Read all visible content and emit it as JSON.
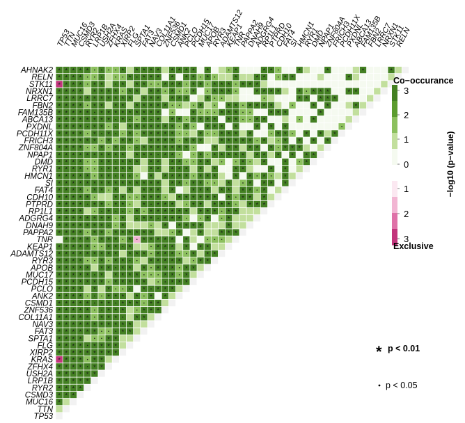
{
  "chart_data": {
    "type": "heatmap",
    "genes": [
      "TP53",
      "TTN",
      "MUC16",
      "CSMD3",
      "RYR2",
      "LRP1B",
      "USH2A",
      "ZFHX4",
      "KRAS",
      "XIRP2",
      "FLG",
      "SPTA1",
      "FAT3",
      "NAV3",
      "COL11A1",
      "ZNF536",
      "CSMD1",
      "ANK2",
      "PCLO",
      "PCDH15",
      "MUC17",
      "APOB",
      "RYR3",
      "ADAMTS12",
      "KEAP1",
      "TNR",
      "PAPPA2",
      "DNAH9",
      "ADGRG4",
      "RP1L1",
      "PTPRD",
      "CDH10",
      "FAT4",
      "SI",
      "HMCN1",
      "RYR1",
      "DMD",
      "NPAP1",
      "ZNF804A",
      "FRICH3",
      "PCDH11X",
      "PXDNL",
      "ABCA13",
      "FAM135B",
      "FBN2",
      "LRRC7",
      "NRXN1",
      "STK11",
      "RELN",
      "AHNAK2"
    ],
    "legend": {
      "title_top": "Co−occurance",
      "title_bottom": "Exclusive",
      "axis_label": "−log10 (p−value)",
      "ticks": [
        "3",
        "2",
        "1",
        "0",
        "1",
        "2",
        "3"
      ],
      "colors": [
        "#438022",
        "#5b9c2e",
        "#8cc05e",
        "#c2df9d",
        "#f5faf0",
        "#ffffff",
        "#fbe8f1",
        "#f2b6d3",
        "#df72a8",
        "#c2357c"
      ]
    },
    "significance": {
      "strong_label": "p < 0.01",
      "weak_label": "p < 0.05",
      "strong_symbol": "*",
      "weak_symbol": "·"
    },
    "special_cells": [
      {
        "row": "STK11",
        "col": "TP53",
        "sign": -1,
        "level": 3,
        "sig": "*"
      },
      {
        "row": "KRAS",
        "col": "TP53",
        "sign": -1,
        "level": 3,
        "sig": "*"
      },
      {
        "row": "TNR",
        "col": "TP53",
        "sign": 0,
        "level": 1,
        "sig": ""
      },
      {
        "row": "TNR",
        "col": "SPTA1",
        "sign": -1,
        "level": 1,
        "sig": "."
      }
    ]
  }
}
